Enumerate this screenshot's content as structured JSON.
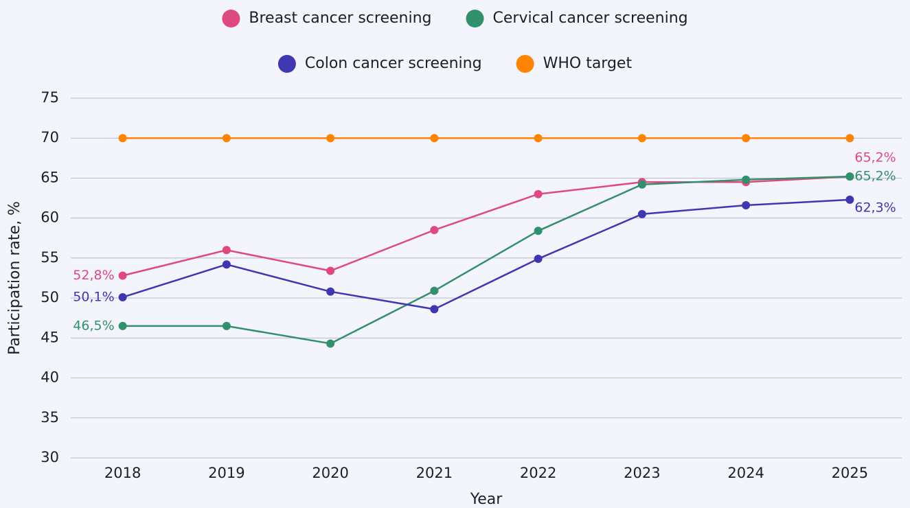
{
  "chart_data": {
    "type": "line",
    "x_label": "Year",
    "y_label": "Participation rate, %",
    "categories": [
      "2018",
      "2019",
      "2020",
      "2021",
      "2022",
      "2023",
      "2024",
      "2025"
    ],
    "series": [
      {
        "name": "Breast cancer screening",
        "color": "#df4a7e",
        "values": [
          52.8,
          56.0,
          53.4,
          58.5,
          63.0,
          64.5,
          64.5,
          65.2
        ],
        "value_labels": [
          "52,8%",
          null,
          null,
          null,
          null,
          null,
          null,
          "65,2%"
        ]
      },
      {
        "name": "Cervical cancer screening",
        "color": "#33906d",
        "values": [
          46.5,
          46.5,
          44.3,
          50.9,
          58.4,
          64.2,
          64.8,
          65.2
        ],
        "value_labels": [
          "46,5%",
          null,
          null,
          null,
          null,
          null,
          null,
          "65,2%"
        ]
      },
      {
        "name": "Colon cancer screening",
        "color": "#3e37b0",
        "values": [
          50.1,
          54.2,
          50.8,
          48.6,
          54.9,
          60.5,
          61.6,
          62.3
        ],
        "value_labels": [
          "50,1%",
          null,
          null,
          null,
          null,
          null,
          null,
          "62,3%"
        ]
      },
      {
        "name": "WHO target",
        "color": "#ff8402",
        "values": [
          70,
          70,
          70,
          70,
          70,
          70,
          70,
          70
        ]
      }
    ],
    "ylim": [
      30,
      75
    ],
    "yticks": [
      30,
      35,
      40,
      45,
      50,
      55,
      60,
      65,
      70,
      75
    ],
    "grid": true,
    "legend": "top"
  }
}
